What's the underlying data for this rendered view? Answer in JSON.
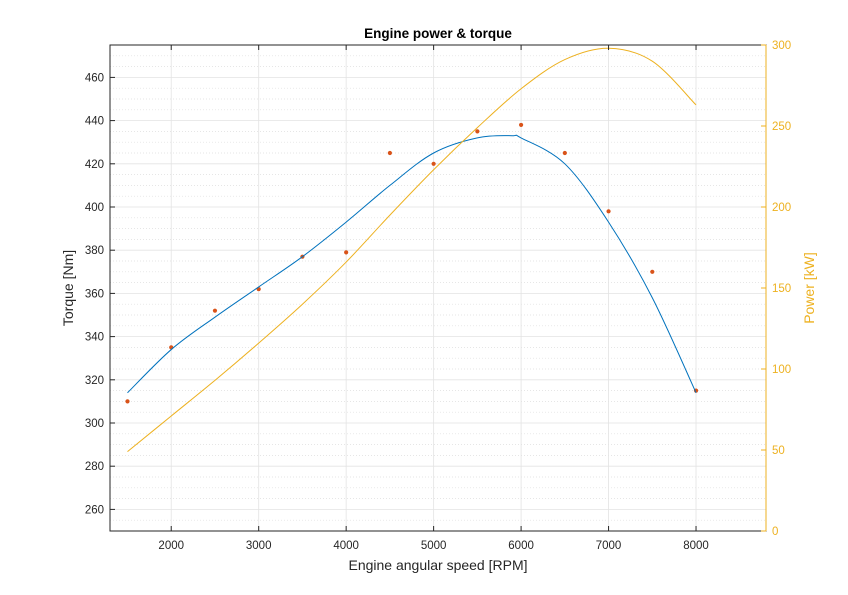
{
  "chart_data": {
    "type": "line",
    "title": "Engine power & torque",
    "xlabel": "Engine angular speed [RPM]",
    "ylabel": "Torque [Nm]",
    "y2label": "Power [kW]",
    "xlim": [
      1300,
      8800
    ],
    "ylim": [
      250,
      475
    ],
    "y2lim": [
      0,
      300
    ],
    "x_ticks": [
      2000,
      3000,
      4000,
      5000,
      6000,
      7000,
      8000
    ],
    "y_ticks": [
      260,
      280,
      300,
      320,
      340,
      360,
      380,
      400,
      420,
      440,
      460
    ],
    "y2_ticks": [
      0,
      50,
      100,
      150,
      200,
      250,
      300
    ],
    "grid": true,
    "minor_grid_y": true,
    "colors": {
      "torque_fit": "#0072BD",
      "measured": "#D95319",
      "power": "#EDB120",
      "axis": "#262626"
    },
    "series": [
      {
        "kind": "scatter",
        "axis": "left",
        "x": [
          1500,
          2000,
          2500,
          3000,
          3500,
          4000,
          4500,
          5000,
          5500,
          6000,
          6500,
          7000,
          7500,
          8000
        ],
        "y": [
          310,
          335,
          352,
          362,
          377,
          379,
          425,
          420,
          435,
          438,
          425,
          398,
          370,
          315
        ]
      },
      {
        "kind": "line",
        "axis": "left",
        "x": [
          1500,
          2000,
          2500,
          3000,
          3500,
          4000,
          4500,
          5000,
          5500,
          5900,
          6000,
          6500,
          7000,
          7500,
          8000
        ],
        "y": [
          314,
          334,
          349,
          363,
          377,
          393,
          410,
          425,
          432,
          433,
          432,
          420,
          393,
          358,
          314
        ]
      },
      {
        "kind": "line",
        "axis": "right",
        "x": [
          1500,
          2000,
          2500,
          3000,
          3500,
          4000,
          4500,
          5000,
          5500,
          6000,
          6500,
          7000,
          7500,
          8000
        ],
        "y": [
          49,
          71,
          93,
          116,
          140,
          166,
          195,
          223,
          249,
          273,
          291,
          298,
          290,
          263
        ]
      }
    ]
  }
}
